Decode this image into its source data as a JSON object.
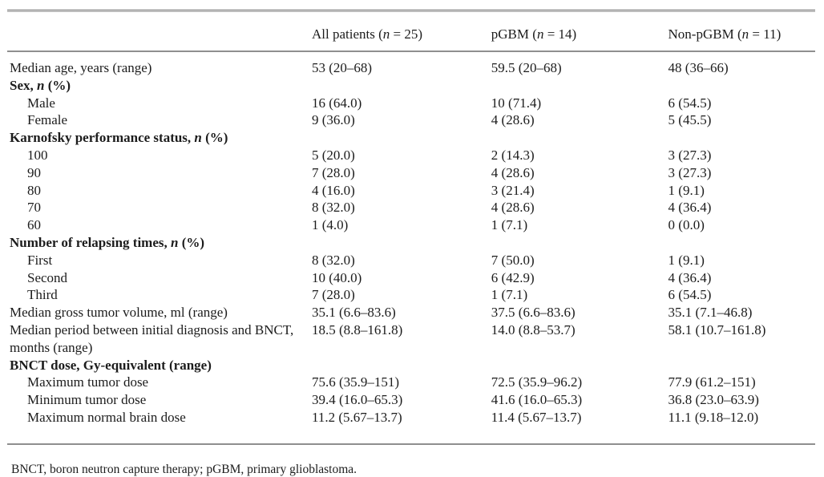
{
  "colors": {
    "text": "#1c1c1c",
    "rule": "#8f8f8f",
    "background": "#ffffff"
  },
  "table": {
    "header": {
      "label_column": "",
      "columns": [
        "All patients (*n* = 25)",
        "pGBM (*n* = 14)",
        "Non-pGBM (*n* = 11)"
      ]
    },
    "rows": [
      {
        "label": "Median age, years (range)",
        "bold": false,
        "indent": false,
        "values": [
          "53 (20–68)",
          "59.5 (20–68)",
          "48 (36–66)"
        ]
      },
      {
        "label": "Sex, *n* (%)",
        "bold": true,
        "indent": false,
        "values": [
          "",
          "",
          ""
        ]
      },
      {
        "label": "Male",
        "bold": false,
        "indent": true,
        "values": [
          "16 (64.0)",
          "10 (71.4)",
          "6 (54.5)"
        ]
      },
      {
        "label": "Female",
        "bold": false,
        "indent": true,
        "values": [
          "9 (36.0)",
          "4 (28.6)",
          "5 (45.5)"
        ]
      },
      {
        "label": "Karnofsky performance status, *n* (%)",
        "bold": true,
        "indent": false,
        "values": [
          "",
          "",
          ""
        ]
      },
      {
        "label": "100",
        "bold": false,
        "indent": true,
        "values": [
          "5 (20.0)",
          "2 (14.3)",
          "3 (27.3)"
        ]
      },
      {
        "label": "90",
        "bold": false,
        "indent": true,
        "values": [
          "7 (28.0)",
          "4 (28.6)",
          "3 (27.3)"
        ]
      },
      {
        "label": "80",
        "bold": false,
        "indent": true,
        "values": [
          "4 (16.0)",
          "3 (21.4)",
          "1 (9.1)"
        ]
      },
      {
        "label": "70",
        "bold": false,
        "indent": true,
        "values": [
          "8 (32.0)",
          "4 (28.6)",
          "4 (36.4)"
        ]
      },
      {
        "label": "60",
        "bold": false,
        "indent": true,
        "values": [
          "1 (4.0)",
          "1 (7.1)",
          "0 (0.0)"
        ]
      },
      {
        "label": "Number of relapsing times, *n* (%)",
        "bold": true,
        "indent": false,
        "values": [
          "",
          "",
          ""
        ]
      },
      {
        "label": "First",
        "bold": false,
        "indent": true,
        "values": [
          "8 (32.0)",
          "7 (50.0)",
          "1 (9.1)"
        ]
      },
      {
        "label": "Second",
        "bold": false,
        "indent": true,
        "values": [
          "10 (40.0)",
          "6 (42.9)",
          "4 (36.4)"
        ]
      },
      {
        "label": "Third",
        "bold": false,
        "indent": true,
        "values": [
          "7 (28.0)",
          "1 (7.1)",
          "6 (54.5)"
        ]
      },
      {
        "label": "Median gross tumor volume, ml (range)",
        "bold": false,
        "indent": false,
        "values": [
          "35.1 (6.6–83.6)",
          "37.5 (6.6–83.6)",
          "35.1 (7.1–46.8)"
        ]
      },
      {
        "label": "Median period between initial diagnosis and BNCT,\nmonths (range)",
        "bold": false,
        "indent": false,
        "values": [
          "18.5 (8.8–161.8)",
          "14.0 (8.8–53.7)",
          "58.1 (10.7–161.8)"
        ]
      },
      {
        "label": "BNCT dose, Gy-equivalent (range)",
        "bold": true,
        "indent": false,
        "values": [
          "",
          "",
          ""
        ]
      },
      {
        "label": "Maximum tumor dose",
        "bold": false,
        "indent": true,
        "values": [
          "75.6 (35.9–151)",
          "72.5 (35.9–96.2)",
          "77.9 (61.2–151)"
        ]
      },
      {
        "label": "Minimum tumor dose",
        "bold": false,
        "indent": true,
        "values": [
          "39.4 (16.0–65.3)",
          "41.6 (16.0–65.3)",
          "36.8 (23.0–63.9)"
        ]
      },
      {
        "label": "Maximum normal brain dose",
        "bold": false,
        "indent": true,
        "values": [
          "11.2 (5.67–13.7)",
          "11.4 (5.67–13.7)",
          "11.1 (9.18–12.0)"
        ]
      }
    ]
  },
  "footnote": "BNCT, boron neutron capture therapy; pGBM, primary glioblastoma."
}
